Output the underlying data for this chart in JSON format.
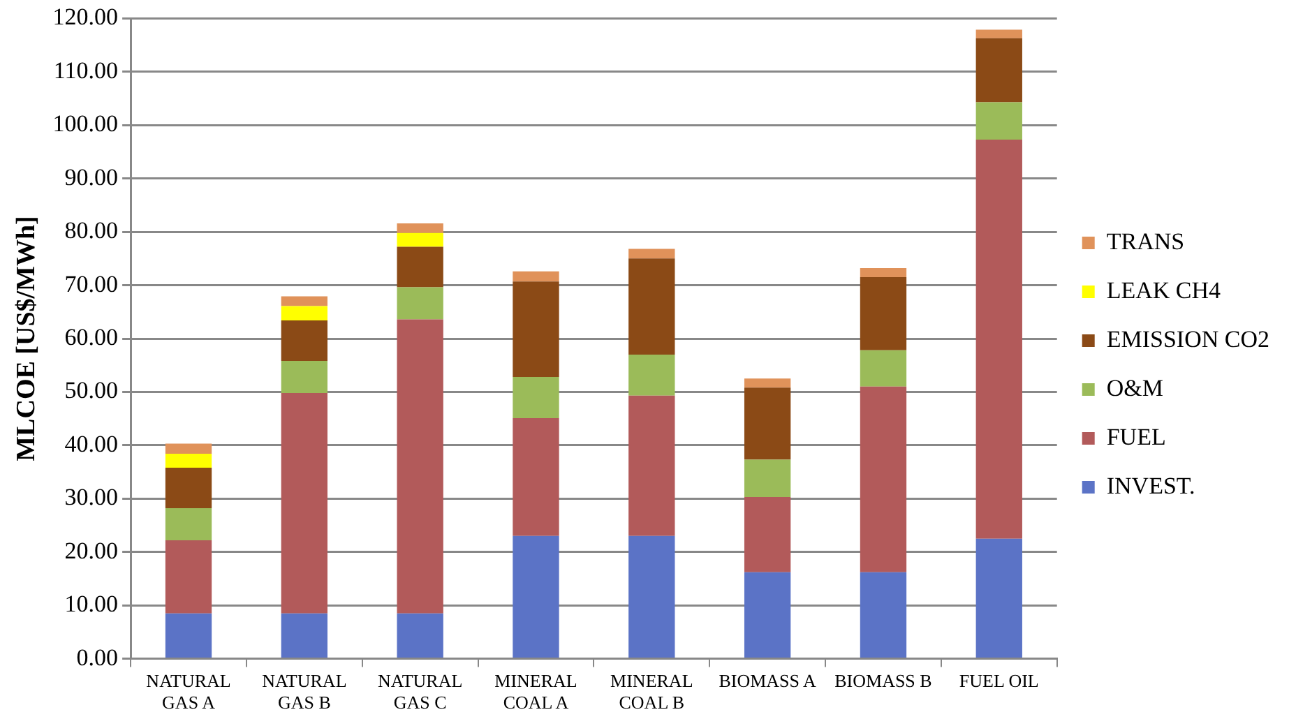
{
  "chart_data": {
    "type": "bar",
    "stacked": true,
    "ylabel": "MLCOE [US$/MWh]",
    "categories": [
      "NATURAL GAS A",
      "NATURAL GAS B",
      "NATURAL GAS C",
      "MINERAL COAL A",
      "MINERAL COAL B",
      "BIOMASS A",
      "BIOMASS B",
      "FUEL OIL"
    ],
    "series": [
      {
        "name": "INVEST.",
        "color": "#5b73c6",
        "values": [
          8.5,
          8.5,
          8.5,
          23.0,
          23.0,
          16.2,
          16.2,
          22.5
        ]
      },
      {
        "name": "FUEL",
        "color": "#b25a5a",
        "values": [
          13.7,
          41.3,
          55.1,
          22.1,
          26.3,
          14.1,
          34.8,
          74.8
        ]
      },
      {
        "name": "O&M",
        "color": "#9bbb59",
        "values": [
          6.0,
          6.0,
          6.0,
          7.7,
          7.7,
          7.0,
          6.8,
          7.0
        ]
      },
      {
        "name": "EMISSION CO2",
        "color": "#8b4a16",
        "values": [
          7.6,
          7.6,
          7.6,
          17.9,
          18.0,
          13.5,
          13.7,
          12.0
        ]
      },
      {
        "name": "LEAK CH4",
        "color": "#ffff00",
        "values": [
          2.6,
          2.7,
          2.6,
          0,
          0,
          0,
          0,
          0
        ]
      },
      {
        "name": "TRANS",
        "color": "#e0925a",
        "values": [
          1.9,
          1.8,
          1.8,
          1.9,
          1.8,
          1.7,
          1.7,
          1.6
        ]
      }
    ],
    "ylim": [
      0,
      120
    ],
    "yticks": [
      {
        "value": 0,
        "label": "0.00"
      },
      {
        "value": 10,
        "label": "10.00"
      },
      {
        "value": 20,
        "label": "20.00"
      },
      {
        "value": 30,
        "label": "30.00"
      },
      {
        "value": 40,
        "label": "40.00"
      },
      {
        "value": 50,
        "label": "50.00"
      },
      {
        "value": 60,
        "label": "60.00"
      },
      {
        "value": 70,
        "label": "70.00"
      },
      {
        "value": 80,
        "label": "80.00"
      },
      {
        "value": 90,
        "label": "90.00"
      },
      {
        "value": 100,
        "label": "100.00"
      },
      {
        "value": 110,
        "label": "110.00"
      },
      {
        "value": 120,
        "label": "120.00"
      }
    ],
    "grid": "y",
    "legend": "right"
  }
}
